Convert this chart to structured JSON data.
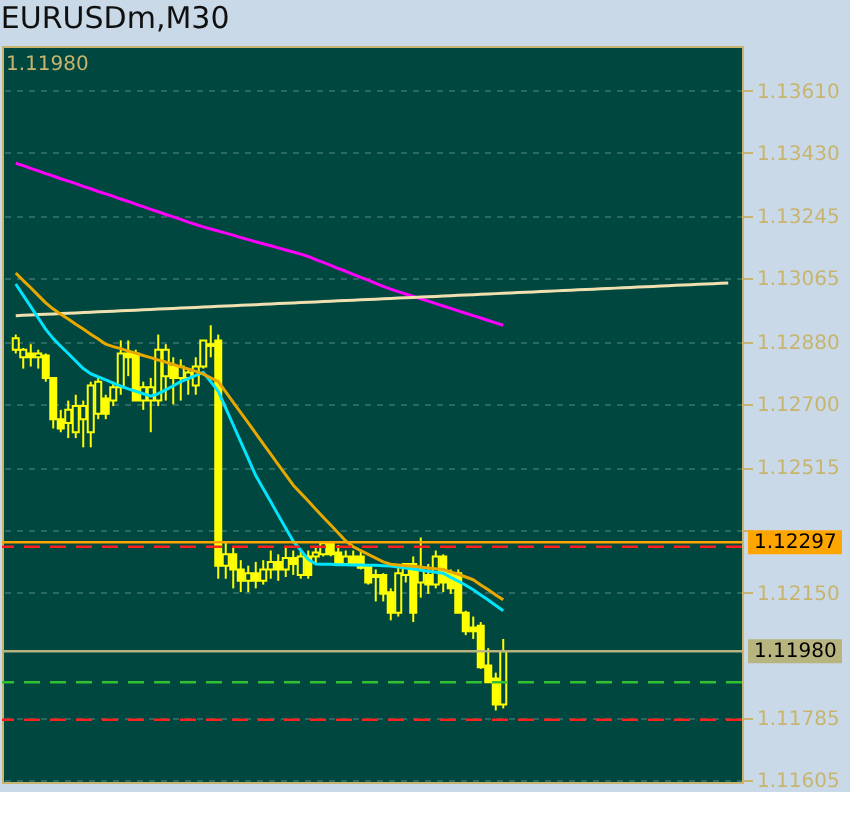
{
  "chart_data": {
    "type": "candlestick",
    "title": "EURUSDm,M30",
    "color": "#ffff00",
    "categories": [
      null,
      null,
      null,
      null,
      null,
      null,
      null,
      null,
      null,
      null,
      null,
      null,
      null,
      null,
      null,
      null,
      null,
      null,
      null,
      null,
      null,
      null,
      null,
      null,
      null,
      null,
      null,
      null,
      null,
      null,
      null,
      null,
      null,
      null,
      null,
      null,
      null,
      null,
      null,
      null,
      null,
      null,
      null,
      null,
      null,
      null,
      null,
      null,
      null,
      null,
      null,
      null,
      null,
      null,
      null,
      null,
      null,
      null,
      null,
      null,
      null,
      null,
      null,
      null,
      null,
      null,
      null,
      null,
      null,
      null,
      null,
      null,
      null,
      null,
      null,
      null,
      null,
      null,
      null,
      null,
      null,
      null,
      null,
      null,
      null,
      null,
      null,
      null,
      null,
      null,
      null,
      null,
      null,
      null,
      null,
      null
    ],
    "ohlc": [
      [
        1.12857,
        1.12901,
        1.12846,
        1.1289
      ],
      [
        1.12835,
        1.12862,
        1.12802,
        1.12857
      ],
      [
        1.12846,
        1.12873,
        1.12808,
        1.12835
      ],
      [
        1.12835,
        1.12857,
        1.12802,
        1.12846
      ],
      [
        1.1284,
        1.12846,
        1.12764,
        1.12775
      ],
      [
        1.12775,
        1.12775,
        1.12628,
        1.12655
      ],
      [
        1.12655,
        1.12682,
        1.12617,
        1.12628
      ],
      [
        1.12644,
        1.12709,
        1.126,
        1.12682
      ],
      [
        1.12617,
        1.12726,
        1.126,
        1.12693
      ],
      [
        1.12655,
        1.12709,
        1.12573,
        1.12693
      ],
      [
        1.12617,
        1.12764,
        1.12573,
        1.12753
      ],
      [
        1.12671,
        1.1278,
        1.12655,
        1.12764
      ],
      [
        1.12715,
        1.12726,
        1.12655,
        1.12671
      ],
      [
        1.12709,
        1.12764,
        1.12693,
        1.12748
      ],
      [
        1.12748,
        1.12884,
        1.12726,
        1.12846
      ],
      [
        1.12846,
        1.12884,
        1.1278,
        1.12835
      ],
      [
        1.12846,
        1.12857,
        1.12709,
        1.12709
      ],
      [
        1.12709,
        1.12764,
        1.12682,
        1.12748
      ],
      [
        1.12709,
        1.12775,
        1.12617,
        1.12748
      ],
      [
        1.12709,
        1.12901,
        1.12693,
        1.12857
      ],
      [
        1.1278,
        1.12873,
        1.12709,
        1.12857
      ],
      [
        1.12808,
        1.12835,
        1.12698,
        1.12775
      ],
      [
        1.12775,
        1.12829,
        1.12709,
        1.12808
      ],
      [
        1.12775,
        1.12802,
        1.12726,
        1.12791
      ],
      [
        1.12753,
        1.12835,
        1.12726,
        1.12808
      ],
      [
        1.12808,
        1.12884,
        1.12802,
        1.12884
      ],
      [
        1.12873,
        1.12928,
        1.12835,
        1.12868
      ],
      [
        1.12884,
        1.12901,
        1.12191,
        1.12229
      ],
      [
        1.12229,
        1.123,
        1.12191,
        1.12262
      ],
      [
        1.12262,
        1.12284,
        1.12163,
        1.12218
      ],
      [
        1.12218,
        1.12245,
        1.12152,
        1.12185
      ],
      [
        1.12185,
        1.12229,
        1.12152,
        1.12207
      ],
      [
        1.12207,
        1.1224,
        1.12163,
        1.12185
      ],
      [
        1.12185,
        1.12245,
        1.12174,
        1.12218
      ],
      [
        1.12218,
        1.12273,
        1.12191,
        1.1224
      ],
      [
        1.1224,
        1.12262,
        1.12185,
        1.12218
      ],
      [
        1.12218,
        1.12284,
        1.12196,
        1.12251
      ],
      [
        1.12251,
        1.12273,
        1.12202,
        1.12234
      ],
      [
        1.12202,
        1.12273,
        1.12191,
        1.12256
      ],
      [
        1.12256,
        1.12273,
        1.12191,
        1.12202
      ],
      [
        1.12256,
        1.12284,
        1.12234,
        1.12267
      ],
      [
        1.12262,
        1.123,
        1.12256,
        1.12294
      ],
      [
        1.12294,
        1.123,
        1.12256,
        1.12262
      ],
      [
        1.12267,
        1.12289,
        1.12229,
        1.12234
      ],
      [
        1.12234,
        1.12273,
        1.12229,
        1.12256
      ],
      [
        1.12256,
        1.12273,
        1.12229,
        1.12234
      ],
      [
        1.12256,
        1.12273,
        1.12218,
        1.12223
      ],
      [
        1.12229,
        1.12234,
        1.12174,
        1.1218
      ],
      [
        1.12202,
        1.12218,
        1.12125,
        1.12196
      ],
      [
        1.12202,
        1.12207,
        1.12125,
        1.12147
      ],
      [
        1.12152,
        1.12163,
        1.1207,
        1.12092
      ],
      [
        1.12092,
        1.12234,
        1.12081,
        1.12207
      ],
      [
        1.12202,
        1.12234,
        1.1218,
        1.12234
      ],
      [
        1.12234,
        1.12256,
        1.12065,
        1.12092
      ],
      [
        1.1218,
        1.12311,
        1.12136,
        1.12218
      ],
      [
        1.12202,
        1.12234,
        1.12147,
        1.12174
      ],
      [
        1.12174,
        1.12273,
        1.12163,
        1.12256
      ],
      [
        1.12256,
        1.12262,
        1.12152,
        1.1218
      ],
      [
        1.12207,
        1.12218,
        1.12147,
        1.12163
      ],
      [
        1.12207,
        1.12218,
        1.12092,
        1.12092
      ],
      [
        1.12092,
        1.12098,
        1.12027,
        1.12038
      ],
      [
        1.12049,
        1.12081,
        1.12016,
        1.12038
      ],
      [
        1.12054,
        1.12065,
        1.11929,
        1.11934
      ],
      [
        1.11939,
        1.11989,
        1.1189,
        1.1189
      ],
      [
        1.11901,
        1.11918,
        1.11808,
        1.11825
      ],
      [
        1.11825,
        1.12016,
        1.11814,
        1.1198
      ],
      null,
      null,
      null,
      null,
      null,
      null,
      null,
      null,
      null,
      null,
      null,
      null,
      null,
      null,
      null,
      null,
      null,
      null,
      null,
      null,
      null,
      null,
      null,
      null,
      null,
      null,
      null,
      null,
      null,
      null
    ],
    "series": [
      {
        "type": "line",
        "color": "#ff00ff",
        "values": [
          1.13399,
          1.13392,
          1.13384,
          1.13377,
          1.13369,
          1.13362,
          1.13354,
          1.13347,
          1.1334,
          1.13332,
          1.13325,
          1.13317,
          1.1331,
          1.13303,
          1.13295,
          1.13288,
          1.1328,
          1.13273,
          1.13265,
          1.13258,
          1.1325,
          1.13243,
          1.13236,
          1.13228,
          1.13221,
          1.13214,
          1.13208,
          1.13202,
          1.13196,
          1.1319,
          1.13183,
          1.13177,
          1.13171,
          1.13165,
          1.13159,
          1.13153,
          1.13147,
          1.13141,
          1.13135,
          1.13128,
          1.13119,
          1.13111,
          1.13102,
          1.13093,
          1.13085,
          1.13076,
          1.13067,
          1.13059,
          1.1305,
          1.13041,
          1.13033,
          1.13026,
          1.13019,
          1.13012,
          1.13005,
          1.12998,
          1.12991,
          1.12984,
          1.12977,
          1.1297,
          1.12963,
          1.12956,
          1.12949,
          1.12942,
          1.12935,
          1.12928,
          null,
          null,
          null,
          null,
          null,
          null,
          null,
          null,
          null,
          null,
          null,
          null,
          null,
          null,
          null,
          null,
          null,
          null,
          null,
          null,
          null,
          null,
          null,
          null,
          null,
          null,
          null,
          null,
          null,
          null
        ]
      },
      {
        "type": "line",
        "color": "#f0e0b0",
        "values": [
          1.12956,
          1.12957,
          1.12958,
          1.12959,
          1.1296,
          1.12961,
          1.12962,
          1.12963,
          1.12964,
          1.12965,
          1.12966,
          1.12967,
          1.12968,
          1.12969,
          1.1297,
          1.12971,
          1.12972,
          1.12973,
          1.12974,
          1.12975,
          1.12976,
          1.12977,
          1.12978,
          1.12979,
          1.1298,
          1.12981,
          1.12982,
          1.12983,
          1.12984,
          1.12985,
          1.12986,
          1.12987,
          1.12988,
          1.12989,
          1.1299,
          1.12991,
          1.12992,
          1.12993,
          1.12994,
          1.12995,
          1.12996,
          1.12997,
          1.12998,
          1.12999,
          1.13,
          1.13001,
          1.13002,
          1.13003,
          1.13004,
          1.13005,
          1.13006,
          1.13007,
          1.13008,
          1.13009,
          1.1301,
          1.13011,
          1.13012,
          1.13013,
          1.13014,
          1.13015,
          1.13016,
          1.13017,
          1.13018,
          1.13019,
          1.1302,
          1.13021,
          1.13022,
          1.13023,
          1.13024,
          1.13025,
          1.13026,
          1.13027,
          1.13028,
          1.13029,
          1.1303,
          1.13031,
          1.13032,
          1.13033,
          1.13034,
          1.13035,
          1.13036,
          1.13037,
          1.13038,
          1.13039,
          1.1304,
          1.13041,
          1.13042,
          1.13043,
          1.13044,
          1.13045,
          1.13046,
          1.13047,
          1.13048,
          1.13049,
          1.1305,
          1.13051
        ]
      },
      {
        "type": "line",
        "color": "#00e5ff",
        "values": [
          1.13048,
          1.13015,
          1.12982,
          1.12949,
          1.12916,
          1.12889,
          1.12867,
          1.12846,
          1.12824,
          1.12802,
          1.12787,
          1.12778,
          1.12769,
          1.1276,
          1.12751,
          1.12743,
          1.12736,
          1.12729,
          1.12722,
          1.12729,
          1.1274,
          1.12752,
          1.12764,
          1.12773,
          1.12782,
          1.12791,
          1.12764,
          1.12736,
          1.12687,
          1.12638,
          1.12589,
          1.1254,
          1.12491,
          1.12453,
          1.12415,
          1.12376,
          1.12338,
          1.123,
          1.12274,
          1.12247,
          1.12234,
          1.12233,
          1.12233,
          1.12232,
          1.12232,
          1.12231,
          1.12231,
          1.1223,
          1.1223,
          1.12229,
          1.12228,
          1.12225,
          1.12222,
          1.12219,
          1.12216,
          1.12213,
          1.1221,
          1.12207,
          1.12195,
          1.12184,
          1.12172,
          1.12159,
          1.12144,
          1.12129,
          1.12113,
          1.12098,
          null,
          null,
          null,
          null,
          null,
          null,
          null,
          null,
          null,
          null,
          null,
          null,
          null,
          null,
          null,
          null,
          null,
          null,
          null,
          null,
          null,
          null,
          null,
          null,
          null,
          null,
          null,
          null,
          null,
          null
        ]
      },
      {
        "type": "line",
        "color": "#e8a800",
        "values": [
          1.1308,
          1.13058,
          1.13037,
          1.13015,
          1.12993,
          1.12975,
          1.1296,
          1.12946,
          1.12931,
          1.12917,
          1.12902,
          1.12888,
          1.12873,
          1.12866,
          1.1286,
          1.12853,
          1.12847,
          1.1284,
          1.12834,
          1.12827,
          1.12821,
          1.12814,
          1.12807,
          1.12801,
          1.12794,
          1.12786,
          1.12775,
          1.12764,
          1.12734,
          1.12704,
          1.12674,
          1.12644,
          1.12614,
          1.12583,
          1.12553,
          1.12523,
          1.12493,
          1.12463,
          1.1244,
          1.12417,
          1.12393,
          1.1237,
          1.12347,
          1.12324,
          1.12301,
          1.12284,
          1.12273,
          1.12262,
          1.12251,
          1.1224,
          1.12233,
          1.12231,
          1.12229,
          1.12227,
          1.12225,
          1.12222,
          1.1222,
          1.12218,
          1.12211,
          1.12204,
          1.12196,
          1.12188,
          1.12173,
          1.12159,
          1.12144,
          1.1213,
          null,
          null,
          null,
          null,
          null,
          null,
          null,
          null,
          null,
          null,
          null,
          null,
          null,
          null,
          null,
          null,
          null,
          null,
          null,
          null,
          null,
          null,
          null,
          null,
          null,
          null,
          null,
          null,
          null,
          null
        ]
      }
    ],
    "ref_lines": [
      {
        "axis": "y",
        "value": 1.12297,
        "label": "1.12297",
        "color": "#ffa500",
        "line_style": "solid"
      },
      {
        "axis": "y",
        "value": 1.1198,
        "label": "1.11980",
        "color": "#b8b480",
        "line_style": "solid"
      },
      {
        "axis": "y",
        "value": 1.12284,
        "color": "#ff2020",
        "line_style": "dashed"
      },
      {
        "axis": "y",
        "value": 1.1189,
        "color": "#30c030",
        "line_style": "dashed"
      },
      {
        "axis": "y",
        "value": 1.11781,
        "color": "#ff2020",
        "line_style": "dashed"
      }
    ],
    "annotations": [
      "1.11980"
    ],
    "ylim": [
      1.116,
      1.1374
    ],
    "yticks": [
      {
        "value": 1.11605,
        "label": "1.11605"
      },
      {
        "value": 1.11785,
        "label": "1.11785"
      },
      {
        "value": 1.1215,
        "label": "1.12150"
      },
      {
        "value": 1.12335,
        "label": null
      },
      {
        "value": 1.12515,
        "label": "1.12515"
      },
      {
        "value": 1.127,
        "label": "1.12700"
      },
      {
        "value": 1.1288,
        "label": "1.12880"
      },
      {
        "value": 1.13065,
        "label": "1.13065"
      },
      {
        "value": 1.13245,
        "label": "1.13245"
      },
      {
        "value": 1.1343,
        "label": "1.13430"
      },
      {
        "value": 1.1361,
        "label": "1.13610"
      }
    ],
    "tick_labels": "y",
    "grid": "y"
  }
}
